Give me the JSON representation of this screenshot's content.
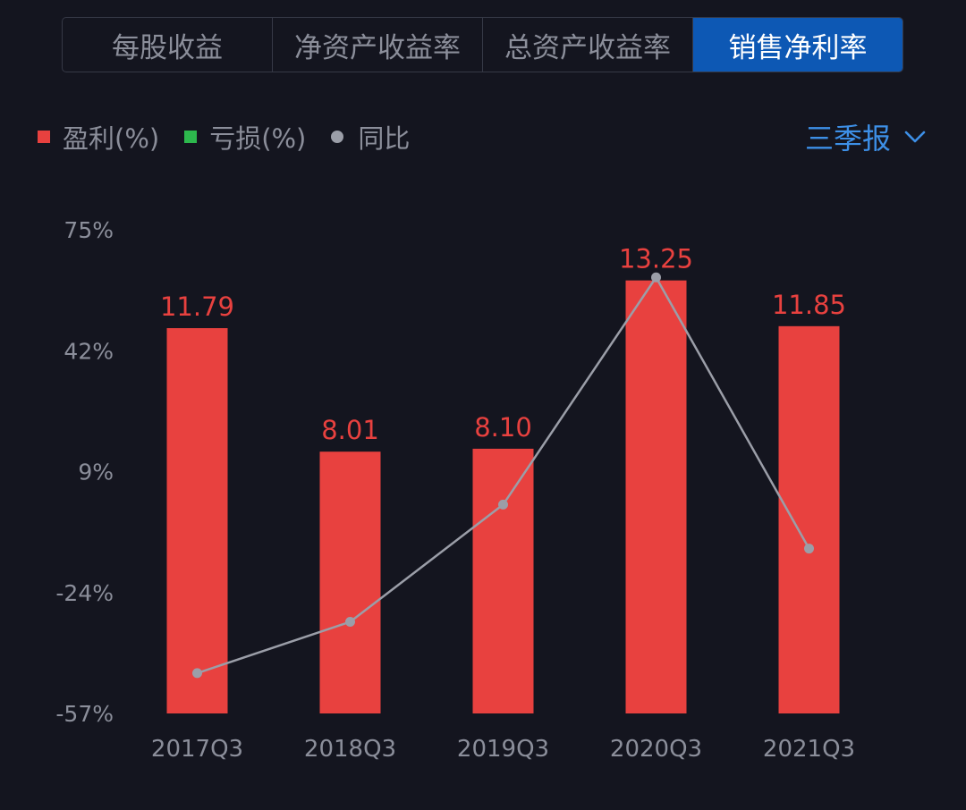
{
  "tabs": [
    {
      "label": "每股收益",
      "active": false
    },
    {
      "label": "净资产收益率",
      "active": false
    },
    {
      "label": "总资产收益率",
      "active": false
    },
    {
      "label": "销售净利率",
      "active": true
    }
  ],
  "legend": [
    {
      "label": "盈利(%)",
      "color": "#e8413f",
      "shape": "square"
    },
    {
      "label": "亏损(%)",
      "color": "#2db84d",
      "shape": "square"
    },
    {
      "label": "同比",
      "color": "#9b9ea8",
      "shape": "circle"
    }
  ],
  "period_selector": {
    "label": "三季报",
    "color": "#3d8fe6",
    "icon": "chevron-down-icon"
  },
  "colors": {
    "profit": "#e8413f",
    "line": "#9b9ea8",
    "accent": "#0d58b4"
  },
  "chart_data": {
    "type": "bar",
    "categories": [
      "2017Q3",
      "2018Q3",
      "2019Q3",
      "2020Q3",
      "2021Q3"
    ],
    "series": [
      {
        "name": "盈利(%)",
        "type": "bar",
        "values": [
          11.79,
          8.01,
          8.1,
          13.25,
          11.85
        ],
        "ylim": [
          0,
          14.8
        ]
      },
      {
        "name": "同比",
        "type": "line",
        "values": [
          -46,
          -32,
          0,
          62,
          -12
        ]
      }
    ],
    "y_ticks": [
      "75%",
      "42%",
      "9%",
      "-24%",
      "-57%"
    ],
    "ylim": [
      -57,
      75
    ],
    "grid": false,
    "legend_position": "top-left"
  }
}
